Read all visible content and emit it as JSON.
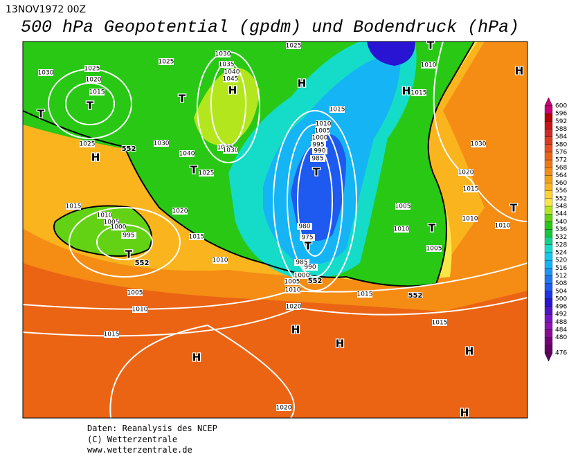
{
  "header": {
    "date": "13NOV1972 00Z",
    "title": "500 hPa Geopotential (gpdm) und Bodendruck (hPa)"
  },
  "footer": [
    "Daten: Reanalysis des NCEP",
    "(C) Wetterzentrale",
    "www.wetterzentrale.de"
  ],
  "colorbar": {
    "levels": [
      600,
      596,
      592,
      588,
      584,
      580,
      576,
      572,
      568,
      564,
      560,
      556,
      552,
      548,
      544,
      540,
      536,
      532,
      528,
      524,
      520,
      516,
      512,
      508,
      504,
      500,
      496,
      492,
      488,
      484,
      480,
      476
    ],
    "colors": [
      "#cc0077",
      "#b40000",
      "#c81414",
      "#d22828",
      "#dc3c1e",
      "#e6501e",
      "#eb6414",
      "#f07814",
      "#f58c14",
      "#f5a014",
      "#fab41e",
      "#fad232",
      "#fae646",
      "#b4e61e",
      "#64d214",
      "#28c814",
      "#14c83c",
      "#14d28c",
      "#14dcc8",
      "#14c8f0",
      "#14b4f5",
      "#1e96f5",
      "#1e78f0",
      "#1e5af0",
      "#1e32e6",
      "#2814d2",
      "#5014c8",
      "#7814c8",
      "#8c14b4",
      "#8c0a96",
      "#78007d",
      "#640064"
    ]
  },
  "map": {
    "pressure_labels": [
      1030,
      1025,
      1020,
      1015,
      1025,
      1030,
      1035,
      1040,
      1045,
      1040,
      1035,
      1030,
      1030,
      1025,
      1025,
      1025,
      1010,
      1015,
      1015,
      1010,
      1005,
      1000,
      995,
      990,
      985,
      1030,
      1020,
      1015,
      1005,
      1010,
      1005,
      1010,
      1010,
      1015,
      1010,
      1005,
      1000,
      995,
      1020,
      1015,
      1010,
      980,
      975,
      985,
      990,
      1000,
      1005,
      1010,
      1015,
      1020,
      1015,
      1005,
      1010,
      1015,
      1020
    ],
    "height_labels": [
      552,
      552,
      552,
      552
    ],
    "centers": [
      "T",
      "T",
      "T",
      "H",
      "H",
      "H",
      "H",
      "H",
      "T",
      "T",
      "T",
      "T",
      "T",
      "T",
      "H",
      "H",
      "H",
      "H",
      "H",
      "T"
    ]
  }
}
